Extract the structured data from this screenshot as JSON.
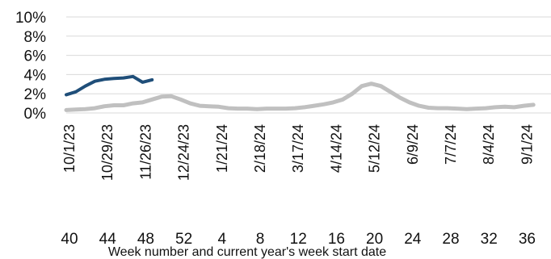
{
  "chart_data": {
    "type": "line",
    "xlabel": "Week number and current year's week start date",
    "ylabel": "",
    "ylim": [
      0,
      10
    ],
    "yticks": [
      "0%",
      "2%",
      "4%",
      "6%",
      "8%",
      "10%"
    ],
    "grid": true,
    "week_ticks": [
      "40",
      "44",
      "48",
      "52",
      "4",
      "8",
      "12",
      "16",
      "20",
      "24",
      "28",
      "32",
      "36"
    ],
    "date_ticks": [
      "10/1/23",
      "10/29/23",
      "11/26/23",
      "12/24/23",
      "1/21/24",
      "2/18/24",
      "3/17/24",
      "4/14/24",
      "5/12/24",
      "6/9/24",
      "7/7/24",
      "8/4/24",
      "9/1/24"
    ],
    "colors": {
      "current": "#1f4e79",
      "previous": "#c0c0c0",
      "grid": "#d9d9d9"
    },
    "series": [
      {
        "values": [
          1.9,
          2.2,
          2.8,
          3.3,
          3.5,
          3.6,
          3.65,
          3.8,
          3.2,
          3.45
        ]
      },
      {
        "values": [
          0.3,
          0.35,
          0.4,
          0.5,
          0.7,
          0.8,
          0.8,
          1.0,
          1.1,
          1.4,
          1.7,
          1.75,
          1.4,
          1.0,
          0.75,
          0.7,
          0.65,
          0.5,
          0.45,
          0.45,
          0.4,
          0.45,
          0.45,
          0.45,
          0.5,
          0.6,
          0.75,
          0.9,
          1.1,
          1.4,
          2.0,
          2.8,
          3.05,
          2.8,
          2.2,
          1.6,
          1.1,
          0.75,
          0.55,
          0.5,
          0.5,
          0.45,
          0.4,
          0.45,
          0.5,
          0.6,
          0.65,
          0.6,
          0.75,
          0.85
        ]
      }
    ]
  }
}
